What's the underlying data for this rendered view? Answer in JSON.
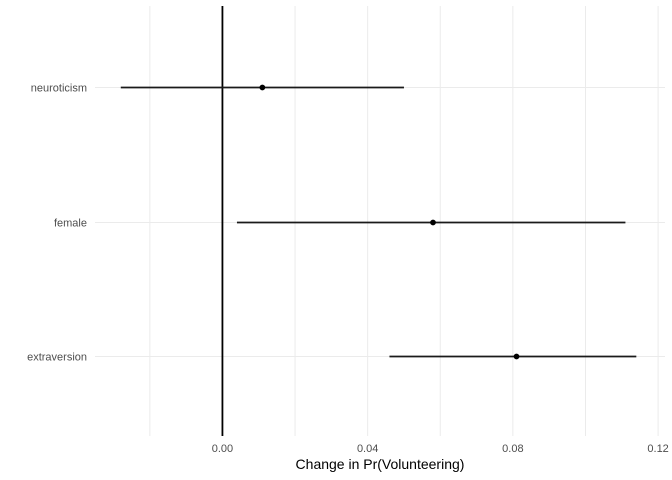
{
  "chart_data": {
    "type": "scatter",
    "subtype": "coefficient-dot-whisker",
    "title": "",
    "xlabel": "Change in Pr(Volunteering)",
    "ylabel": "",
    "categories": [
      "neuroticism",
      "female",
      "extraversion"
    ],
    "rows": [
      {
        "label": "neuroticism",
        "estimate": 0.011,
        "ci_low": -0.028,
        "ci_high": 0.05
      },
      {
        "label": "female",
        "estimate": 0.058,
        "ci_low": 0.004,
        "ci_high": 0.111
      },
      {
        "label": "extraversion",
        "estimate": 0.081,
        "ci_low": 0.046,
        "ci_high": 0.114
      }
    ],
    "x_ticks": [
      {
        "value": 0.0,
        "label": "0.00"
      },
      {
        "value": 0.04,
        "label": "0.04"
      },
      {
        "value": 0.08,
        "label": "0.08"
      },
      {
        "value": 0.12,
        "label": "0.12"
      }
    ],
    "x_gridlines": [
      -0.02,
      0.0,
      0.02,
      0.04,
      0.06,
      0.08,
      0.1,
      0.12
    ],
    "xlim": [
      -0.0351,
      0.1219
    ],
    "reference_line_x": 0,
    "grid": true,
    "legend": false,
    "colors": {
      "point": "#000000",
      "errorbar": "#1a1a1a",
      "reference_line": "#000000",
      "gridline": "#ebebeb",
      "axis_text": "#4d4d4d",
      "axis_title": "#000000",
      "background": "#ffffff"
    }
  }
}
